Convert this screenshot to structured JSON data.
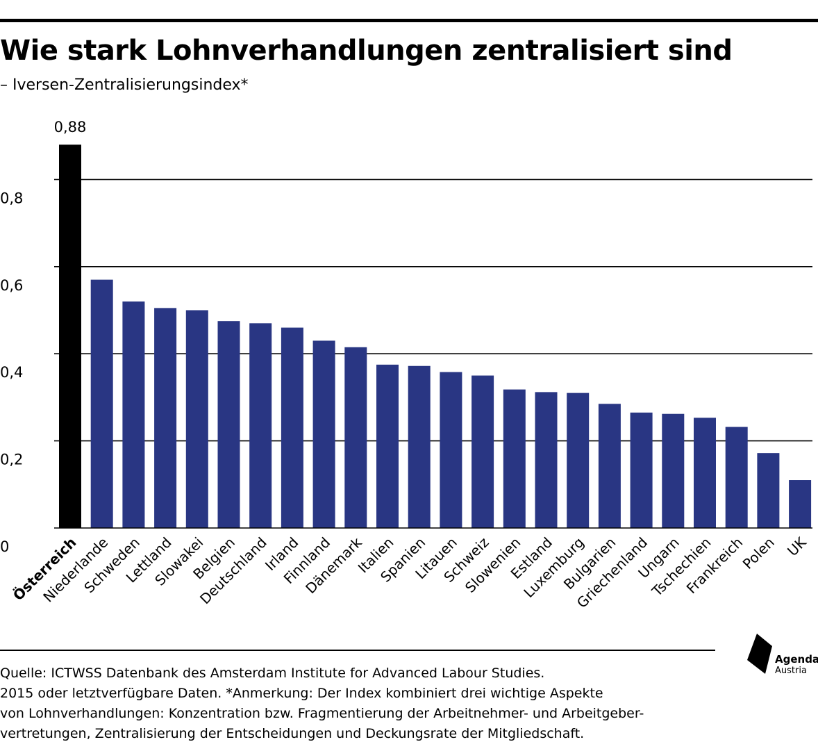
{
  "header": {
    "title": "Wie stark Lohnverhandlungen zentralisiert sind",
    "subtitle": "– Iversen-Zentralisierungsindex*"
  },
  "colors": {
    "highlight": "#000000",
    "bars": "#293683",
    "grid": "#000000"
  },
  "chart_data": {
    "type": "bar",
    "title": "Wie stark Lohnverhandlungen zentralisiert sind",
    "subtitle": "– Iversen-Zentralisierungsindex*",
    "categories": [
      "Österreich",
      "Niederlande",
      "Schweden",
      "Lettland",
      "Slowakei",
      "Belgien",
      "Deutschland",
      "Irland",
      "Finnland",
      "Dänemark",
      "Italien",
      "Spanien",
      "Litauen",
      "Schweiz",
      "Slowenien",
      "Estland",
      "Luxemburg",
      "Bulgarien",
      "Griechenland",
      "Ungarn",
      "Tschechien",
      "Frankreich",
      "Polen",
      "UK"
    ],
    "values": [
      0.88,
      0.57,
      0.52,
      0.505,
      0.5,
      0.475,
      0.47,
      0.46,
      0.43,
      0.415,
      0.375,
      0.372,
      0.358,
      0.35,
      0.318,
      0.312,
      0.31,
      0.285,
      0.265,
      0.262,
      0.253,
      0.232,
      0.172,
      0.11
    ],
    "highlight_index": 0,
    "value_labels": [
      {
        "index": 0,
        "text": "0,88"
      }
    ],
    "yticks": [
      0,
      0.2,
      0.4,
      0.6,
      0.8
    ],
    "ytick_labels": [
      "0",
      "0,2",
      "0,4",
      "0,6",
      "0,8"
    ],
    "ylim": [
      0,
      0.88
    ],
    "grid": true,
    "xlabel": "",
    "ylabel": ""
  },
  "footer": {
    "source_lines": [
      "Quelle: ICTWSS Datenbank des Amsterdam Institute for Advanced Labour Studies.",
      "2015 oder letztverfügbare Daten. *Anmerkung: Der Index kombiniert drei wichtige Aspekte",
      "von Lohnverhandlungen: Konzentration bzw. Fragmentierung der Arbeitnehmer- und Arbeitgeber-",
      "vertretungen, Zentralisierung der Entscheidungen und Deckungsrate der Mitgliedschaft."
    ],
    "logo_name": "Agenda",
    "logo_sub": "Austria",
    "logo_icon": "agenda-austria-logo-icon"
  }
}
